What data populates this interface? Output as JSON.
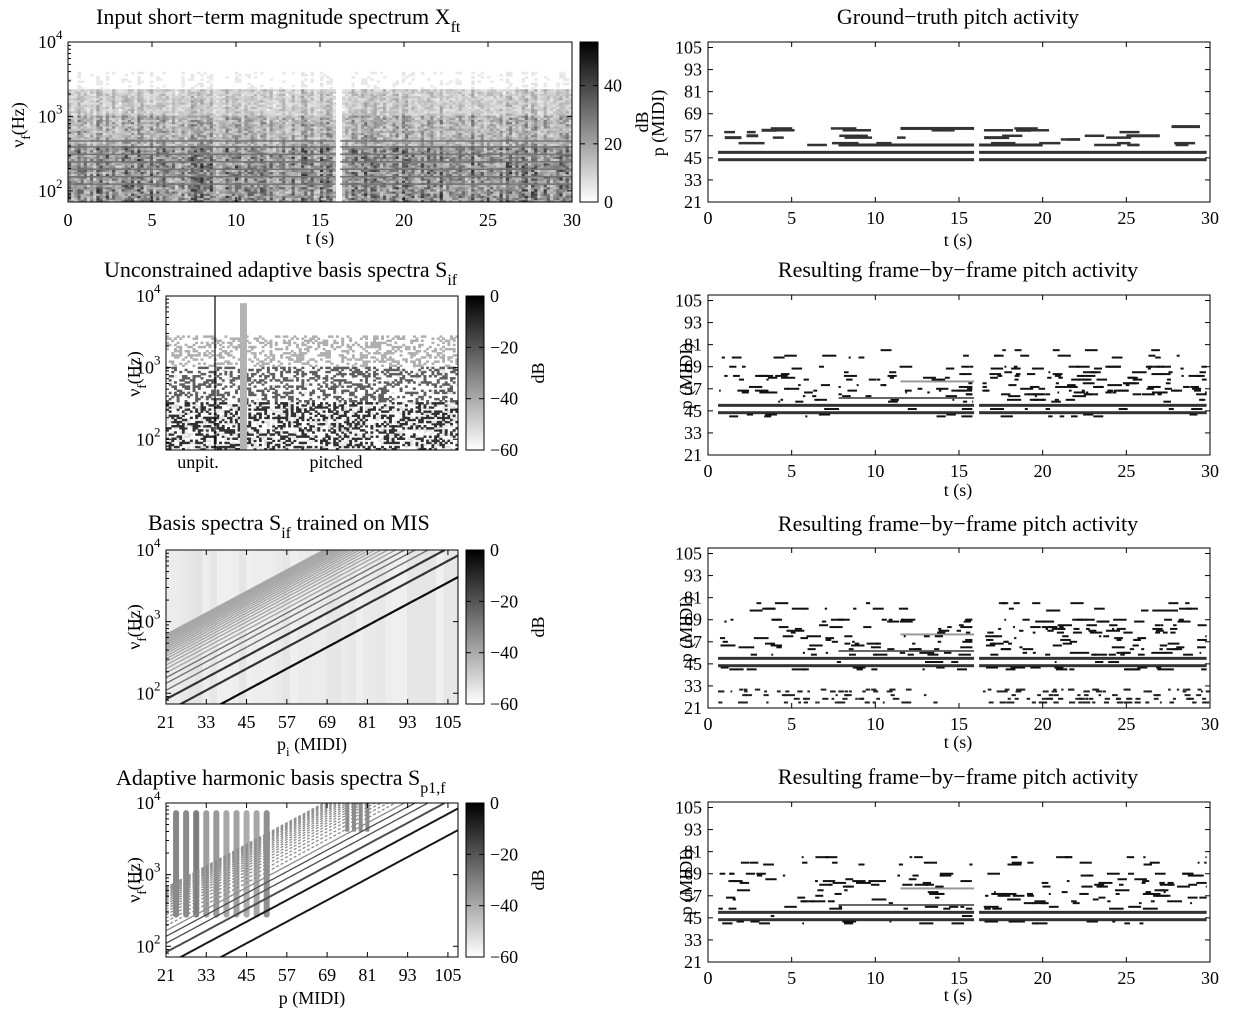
{
  "panels": {
    "input_spec": {
      "title": "Input short−term magnitude spectrum X",
      "title_sub": "ft",
      "ylabel_main": "ν",
      "ylabel_sub": "f",
      "ylabel_rest": "(Hz)",
      "xlabel": "t (s)",
      "xticks": [
        "0",
        "5",
        "10",
        "15",
        "20",
        "25",
        "30"
      ],
      "yticks": [
        "10",
        "10",
        "10"
      ],
      "ytick_exps": [
        "2",
        "3",
        "4"
      ],
      "cbar_label": "dB",
      "cbar_ticks": [
        "40",
        "20",
        "0"
      ]
    },
    "unconstrained": {
      "title": "Unconstrained adaptive basis spectra S",
      "title_sub": "if",
      "ylabel_main": "ν",
      "ylabel_sub": "f",
      "ylabel_rest": "(Hz)",
      "cat_left": "unpit.",
      "cat_right": "pitched",
      "yticks": [
        "10",
        "10",
        "10"
      ],
      "ytick_exps": [
        "2",
        "3",
        "4"
      ],
      "cbar_label": "dB",
      "cbar_ticks": [
        "0",
        "−20",
        "−40",
        "−60"
      ]
    },
    "trained_mis": {
      "title": "Basis spectra S",
      "title_sub": "if",
      "title_rest": " trained on MIS",
      "ylabel_main": "ν",
      "ylabel_sub": "f",
      "ylabel_rest": "(Hz)",
      "xlabel_main": "p",
      "xlabel_sub": "i",
      "xlabel_rest": " (MIDI)",
      "xticks": [
        "21",
        "33",
        "45",
        "57",
        "69",
        "81",
        "93",
        "105"
      ],
      "yticks": [
        "10",
        "10",
        "10"
      ],
      "ytick_exps": [
        "2",
        "3",
        "4"
      ],
      "cbar_label": "dB",
      "cbar_ticks": [
        "0",
        "−20",
        "−40",
        "−60"
      ]
    },
    "harmonic": {
      "title": "Adaptive harmonic basis spectra S",
      "title_sub": "p1,f",
      "ylabel_main": "ν",
      "ylabel_sub": "f",
      "ylabel_rest": "(Hz)",
      "xlabel": "p (MIDI)",
      "xticks": [
        "21",
        "33",
        "45",
        "57",
        "69",
        "81",
        "93",
        "105"
      ],
      "yticks": [
        "10",
        "10",
        "10"
      ],
      "ytick_exps": [
        "2",
        "3",
        "4"
      ],
      "cbar_label": "dB",
      "cbar_ticks": [
        "0",
        "−20",
        "−40",
        "−60"
      ]
    },
    "gt": {
      "title": "Ground−truth pitch activity",
      "ylabel": "p (MIDI)",
      "xlabel": "t (s)"
    },
    "res1": {
      "title": "Resulting frame−by−frame pitch activity",
      "ylabel": "p (MIDI)",
      "xlabel": "t (s)"
    },
    "res2": {
      "title": "Resulting frame−by−frame pitch activity",
      "ylabel": "p (MIDI)",
      "xlabel": "t (s)"
    },
    "res3": {
      "title": "Resulting frame−by−frame pitch activity",
      "ylabel": "p (MIDI)",
      "xlabel": "t (s)"
    }
  },
  "pitch_axis": {
    "xticks": [
      "0",
      "5",
      "10",
      "15",
      "20",
      "25",
      "30"
    ],
    "yticks": [
      "21",
      "33",
      "45",
      "57",
      "69",
      "81",
      "93",
      "105"
    ]
  },
  "chart_data": [
    {
      "type": "heatmap",
      "title": "Input short−term magnitude spectrum X_ft",
      "xlabel": "t (s)",
      "ylabel": "ν_f (Hz)",
      "xlim": [
        0,
        30
      ],
      "ylim_log10": [
        1.85,
        4.0
      ],
      "colorbar": {
        "label": "dB",
        "range": [
          0,
          55
        ],
        "ticks": [
          0,
          20,
          40
        ]
      },
      "note_gap_s": [
        15.9,
        16.2
      ]
    },
    {
      "type": "heatmap",
      "title": "Unconstrained adaptive basis spectra S_if",
      "ylabel": "ν_f (Hz)",
      "categories": [
        "unpit.",
        "pitched"
      ],
      "ylim_log10": [
        1.85,
        4.0
      ],
      "colorbar": {
        "label": "dB",
        "range": [
          -60,
          0
        ],
        "ticks": [
          0,
          -20,
          -40,
          -60
        ]
      }
    },
    {
      "type": "heatmap",
      "title": "Basis spectra S_if trained on MIS",
      "xlabel": "p_i (MIDI)",
      "ylabel": "ν_f (Hz)",
      "xlim": [
        21,
        108
      ],
      "ylim_log10": [
        1.85,
        4.0
      ],
      "colorbar": {
        "label": "dB",
        "range": [
          -60,
          0
        ],
        "ticks": [
          0,
          -20,
          -40,
          -60
        ]
      }
    },
    {
      "type": "heatmap",
      "title": "Adaptive harmonic basis spectra S_p1,f",
      "xlabel": "p (MIDI)",
      "ylabel": "ν_f (Hz)",
      "xlim": [
        21,
        108
      ],
      "ylim_log10": [
        1.85,
        4.0
      ],
      "colorbar": {
        "label": "dB",
        "range": [
          -60,
          0
        ],
        "ticks": [
          0,
          -20,
          -40,
          -60
        ]
      }
    },
    {
      "type": "scatter",
      "title": "Ground−truth pitch activity",
      "xlabel": "t (s)",
      "ylabel": "p (MIDI)",
      "xlim": [
        0,
        30
      ],
      "ylim": [
        21,
        108
      ],
      "notes": [
        {
          "p": 44,
          "t0": 0.6,
          "t1": 15.9
        },
        {
          "p": 48,
          "t0": 0.6,
          "t1": 15.9
        },
        {
          "p": 52,
          "t0": 7.8,
          "t1": 15.9
        },
        {
          "p": 56,
          "t0": 1.0,
          "t1": 2.0
        },
        {
          "p": 57,
          "t0": 2.3,
          "t1": 3.0
        },
        {
          "p": 60,
          "t0": 3.2,
          "t1": 4.1
        },
        {
          "p": 61,
          "t0": 11.5,
          "t1": 15.9
        },
        {
          "p": 44,
          "t0": 16.2,
          "t1": 29.8
        },
        {
          "p": 48,
          "t0": 16.2,
          "t1": 29.8
        },
        {
          "p": 52,
          "t0": 16.2,
          "t1": 20.0
        },
        {
          "p": 56,
          "t0": 16.5,
          "t1": 18.0
        },
        {
          "p": 60,
          "t0": 18.4,
          "t1": 19.3
        },
        {
          "p": 57,
          "t0": 25.0,
          "t1": 27.0
        },
        {
          "p": 62,
          "t0": 27.7,
          "t1": 29.4
        }
      ]
    },
    {
      "type": "scatter",
      "title": "Resulting frame−by−frame pitch activity",
      "xlabel": "t (s)",
      "ylabel": "p (MIDI)",
      "xlim": [
        0,
        30
      ],
      "ylim": [
        21,
        108
      ]
    },
    {
      "type": "scatter",
      "title": "Resulting frame−by−frame pitch activity",
      "xlabel": "t (s)",
      "ylabel": "p (MIDI)",
      "xlim": [
        0,
        30
      ],
      "ylim": [
        21,
        108
      ]
    },
    {
      "type": "scatter",
      "title": "Resulting frame−by−frame pitch activity",
      "xlabel": "t (s)",
      "ylabel": "p (MIDI)",
      "xlim": [
        0,
        30
      ],
      "ylim": [
        21,
        108
      ]
    }
  ]
}
